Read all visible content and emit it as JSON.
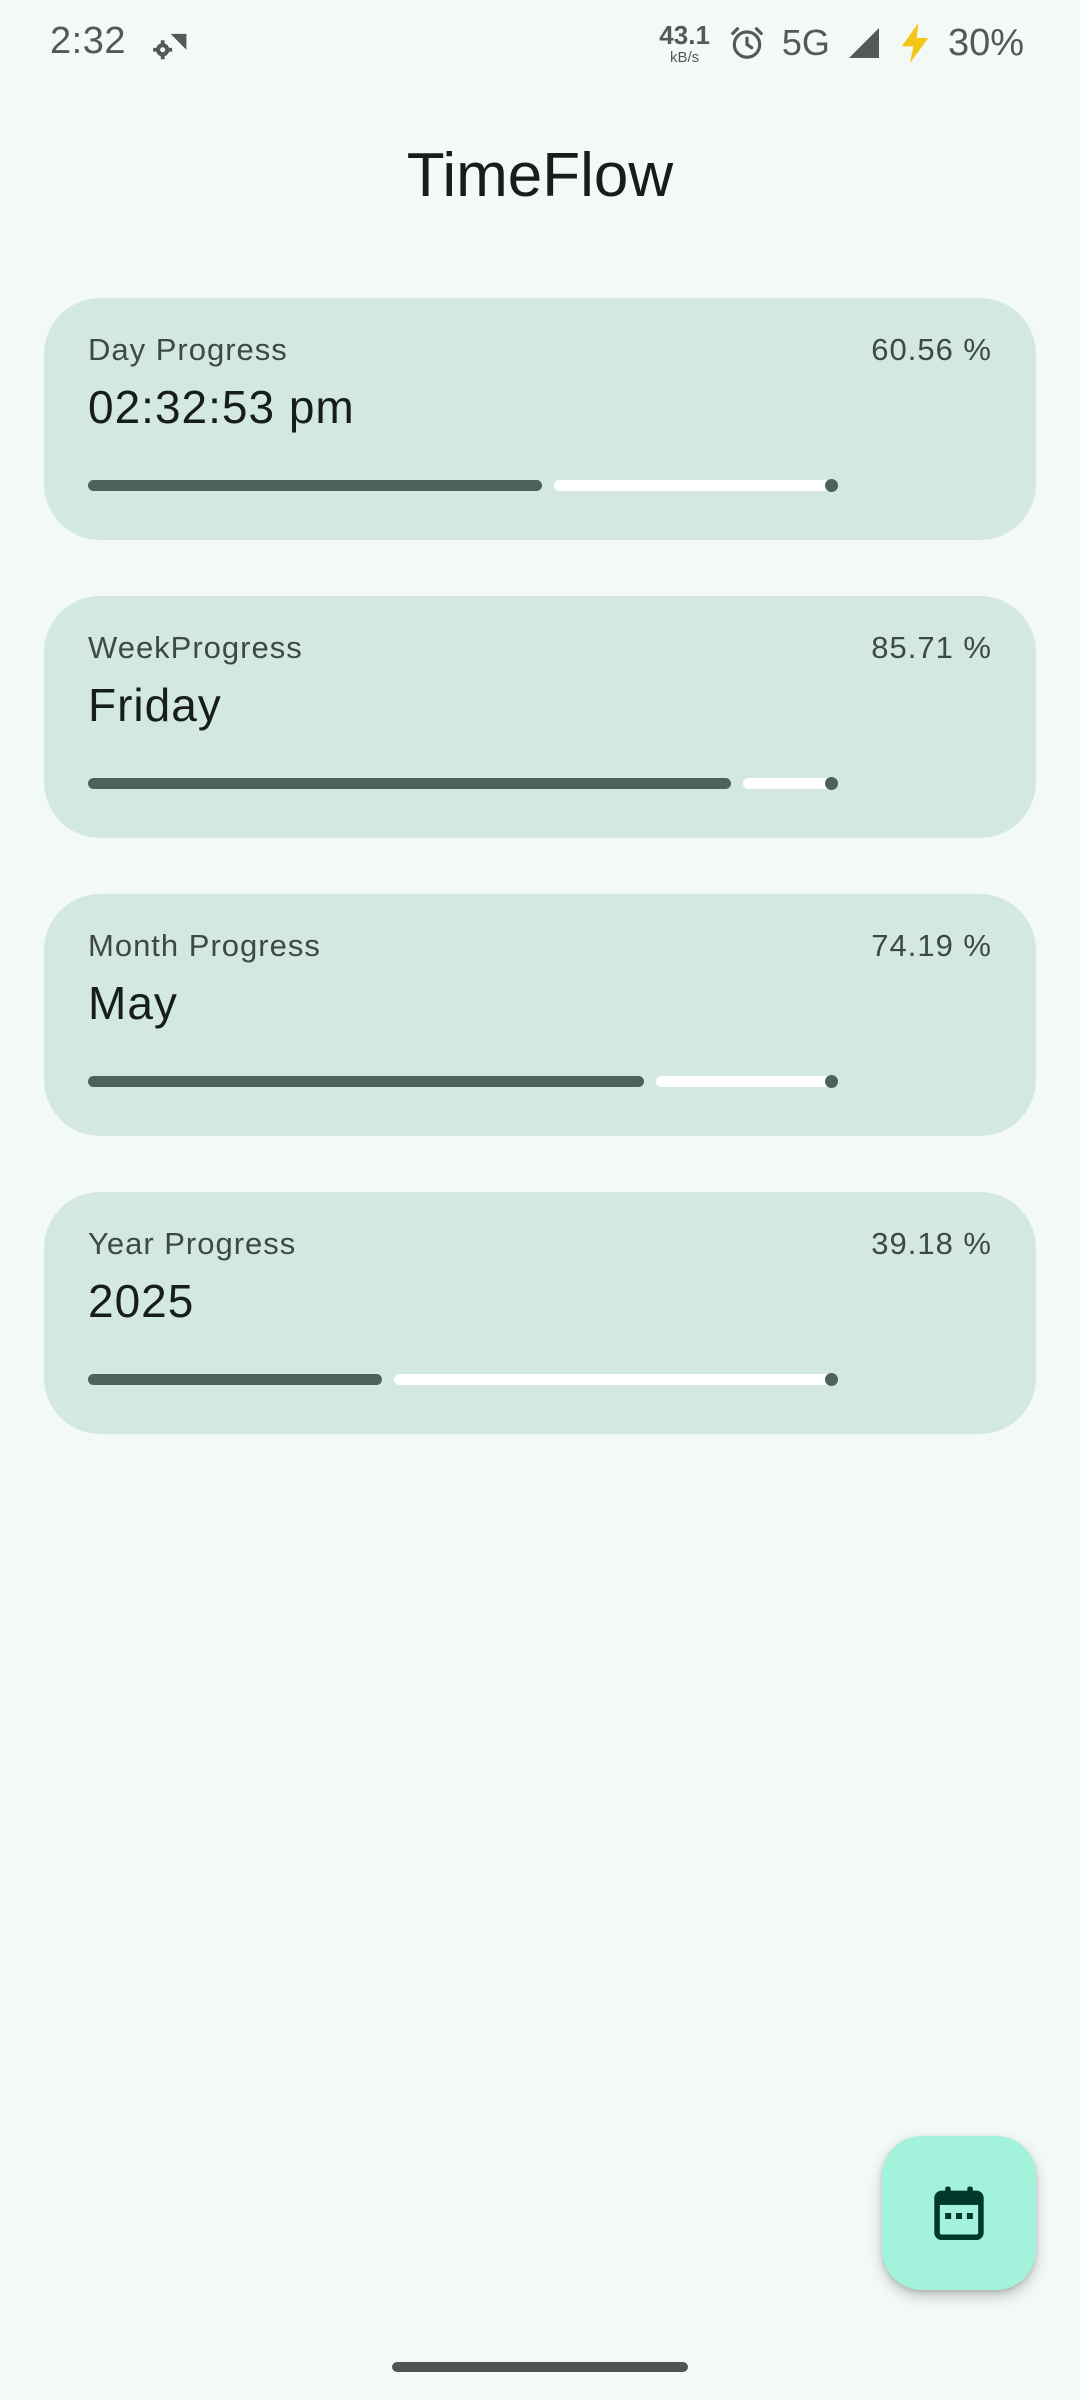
{
  "status_bar": {
    "time": "2:32",
    "net_speed_value": "43.1",
    "net_speed_unit": "kB/s",
    "network_type": "5G",
    "battery_percent": "30%",
    "icons": [
      "settings-wifi-icon",
      "alarm-icon",
      "signal-icon",
      "charging-bolt-icon"
    ]
  },
  "app": {
    "title": "TimeFlow"
  },
  "cards": [
    {
      "label": "Day Progress",
      "value": "02:32:53 pm",
      "percent_text": "60.56 %",
      "progress": 0.6056
    },
    {
      "label": "WeekProgress",
      "value": "Friday",
      "percent_text": "85.71 %",
      "progress": 0.8571
    },
    {
      "label": "Month Progress",
      "value": "May",
      "percent_text": "74.19 %",
      "progress": 0.7419
    },
    {
      "label": "Year Progress",
      "value": "2025",
      "percent_text": "39.18 %",
      "progress": 0.3918
    }
  ],
  "fab": {
    "icon": "calendar-icon"
  },
  "colors": {
    "background": "#f3faf6",
    "card": "#d4e8e2",
    "progress_fill": "#4e625c",
    "progress_track": "#ffffff",
    "fab": "#a3f2dc",
    "fab_icon": "#00382b"
  }
}
